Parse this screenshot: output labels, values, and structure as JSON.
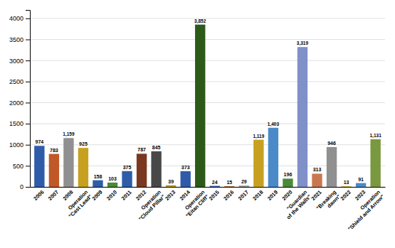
{
  "chart_data": {
    "type": "bar",
    "categories": [
      "2006",
      "2007",
      "2008",
      "Operation\n\"Cast Lead\"",
      "2009",
      "2010",
      "2011",
      "2012",
      "Operation\n\"Cloud Pillar\"",
      "2013",
      "2014",
      "Operation\n\"Eitan Cliff\"",
      "2015",
      "2016",
      "2017",
      "2018",
      "2019",
      "2020",
      "\"Guardian\nof the Walls\"",
      "2021",
      "\"Breaking\ndawn\"",
      "2022",
      "2023",
      "Operation\n\"Shield and Arrow\""
    ],
    "values": [
      974,
      783,
      1159,
      925,
      158,
      103,
      375,
      787,
      845,
      39,
      373,
      3852,
      24,
      15,
      29,
      1119,
      1403,
      196,
      3319,
      313,
      946,
      13,
      91,
      1131
    ],
    "value_labels": [
      "974",
      "783",
      "1,159",
      "925",
      "158",
      "103",
      "375",
      "787",
      "845",
      "39",
      "373",
      "3,852",
      "24",
      "15",
      "29",
      "1,119",
      "1,403",
      "196",
      "3,319",
      "313",
      "946",
      "13",
      "91",
      "1,131"
    ],
    "colors": [
      "#2e5ca8",
      "#c05828",
      "#909090",
      "#c8a020",
      "#2e5ca8",
      "#4a8a3a",
      "#2e5ca8",
      "#7a3820",
      "#484848",
      "#b89820",
      "#2e5ca8",
      "#2d5a18",
      "#2e5ca8",
      "#9e5820",
      "#909090",
      "#c8a020",
      "#4a8ac8",
      "#4a8a3a",
      "#8090c8",
      "#c87850",
      "#909090",
      "#b89820",
      "#4a8ac8",
      "#7a9840"
    ],
    "ylim": [
      0,
      4200
    ],
    "yticks": [
      0,
      500,
      1000,
      1500,
      2000,
      2500,
      3000,
      3500,
      4000
    ],
    "grid": true,
    "data_labels": true
  }
}
